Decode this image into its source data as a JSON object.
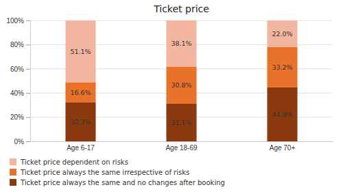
{
  "chart_data": {
    "type": "bar",
    "title": "Ticket price",
    "categories": [
      "Age 6-17",
      "Age 18-69",
      "Age 70+"
    ],
    "series": [
      {
        "name": "Ticket price always the same and no changes after booking",
        "color": "#8B3A0F",
        "values": [
          32.3,
          31.1,
          44.8
        ],
        "value_labels": [
          "32.3%",
          "31.1%",
          "44.8%"
        ]
      },
      {
        "name": "Ticket price always the same irrespective of risks",
        "color": "#E8722A",
        "values": [
          16.6,
          30.8,
          33.2
        ],
        "value_labels": [
          "16.6%",
          "30.8%",
          "33.2%"
        ]
      },
      {
        "name": "Ticket price dependent on risks",
        "color": "#F2B5A0",
        "values": [
          51.1,
          38.1,
          22.0
        ],
        "value_labels": [
          "51.1%",
          "38.1%",
          "22.0%"
        ]
      }
    ],
    "stacked": true,
    "data_labels": true,
    "ylim": [
      0,
      100
    ],
    "yticks": [
      {
        "value": 0,
        "label": "0%"
      },
      {
        "value": 20,
        "label": "20%"
      },
      {
        "value": 40,
        "label": "40%"
      },
      {
        "value": 60,
        "label": "60%"
      },
      {
        "value": 80,
        "label": "80%"
      },
      {
        "value": 100,
        "label": "100%"
      }
    ],
    "grid": true,
    "legend": "bottom"
  }
}
